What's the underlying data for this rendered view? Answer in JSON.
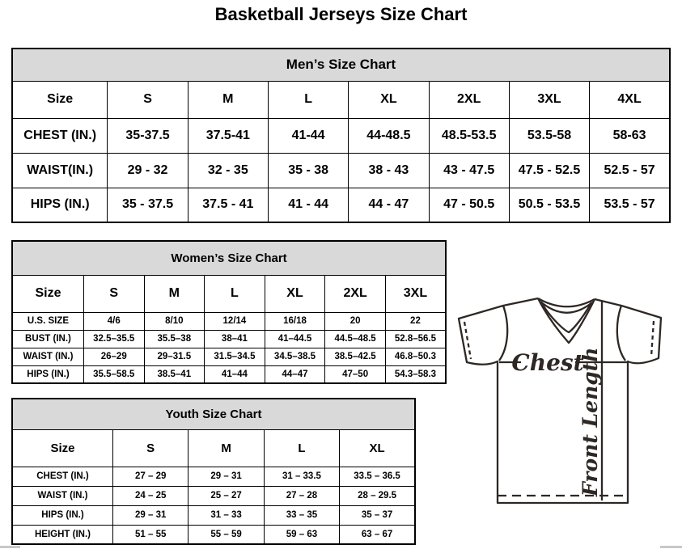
{
  "page": {
    "title": "Basketball Jerseys Size Chart"
  },
  "tables": {
    "mens": {
      "title": "Men’s Size Chart",
      "columns": [
        "Size",
        "S",
        "M",
        "L",
        "XL",
        "2XL",
        "3XL",
        "4XL"
      ],
      "rows": [
        [
          "CHEST (IN.)",
          "35-37.5",
          "37.5-41",
          "41-44",
          "44-48.5",
          "48.5-53.5",
          "53.5-58",
          "58-63"
        ],
        [
          "WAIST(IN.)",
          "29 - 32",
          "32 - 35",
          "35 - 38",
          "38 - 43",
          "43 - 47.5",
          "47.5 - 52.5",
          "52.5 - 57"
        ],
        [
          "HIPS (IN.)",
          "35 - 37.5",
          "37.5 - 41",
          "41 - 44",
          "44 - 47",
          "47 - 50.5",
          "50.5 - 53.5",
          "53.5 - 57"
        ]
      ]
    },
    "womens": {
      "title": "Women’s Size Chart",
      "columns": [
        "Size",
        "S",
        "M",
        "L",
        "XL",
        "2XL",
        "3XL"
      ],
      "rows": [
        [
          "U.S. SIZE",
          "4/6",
          "8/10",
          "12/14",
          "16/18",
          "20",
          "22"
        ],
        [
          "BUST (IN.)",
          "32.5–35.5",
          "35.5–38",
          "38–41",
          "41–44.5",
          "44.5–48.5",
          "52.8–56.5"
        ],
        [
          "WAIST (IN.)",
          "26–29",
          "29–31.5",
          "31.5–34.5",
          "34.5–38.5",
          "38.5–42.5",
          "46.8–50.3"
        ],
        [
          "HIPS (IN.)",
          "35.5–58.5",
          "38.5–41",
          "41–44",
          "44–47",
          "47–50",
          "54.3–58.3"
        ]
      ]
    },
    "youth": {
      "title": "Youth Size Chart",
      "columns": [
        "Size",
        "S",
        "M",
        "L",
        "XL"
      ],
      "rows": [
        [
          "CHEST (IN.)",
          "27 – 29",
          "29 – 31",
          "31 – 33.5",
          "33.5 – 36.5"
        ],
        [
          "WAIST (IN.)",
          "24 – 25",
          "25 – 27",
          "27 – 28",
          "28 – 29.5"
        ],
        [
          "HIPS (IN.)",
          "29 – 31",
          "31 – 33",
          "33 – 35",
          "35 – 37"
        ],
        [
          "HEIGHT (IN.)",
          "51 – 55",
          "55 – 59",
          "59 – 63",
          "63 – 67"
        ]
      ]
    }
  },
  "diagram": {
    "chest_label": "Chest",
    "front_length_label": "Front Length"
  },
  "colors": {
    "header_bg": "#d9d9d9",
    "border": "#000000",
    "jersey_line": "#2e2723",
    "scrollbar": "#c8c8c8"
  }
}
